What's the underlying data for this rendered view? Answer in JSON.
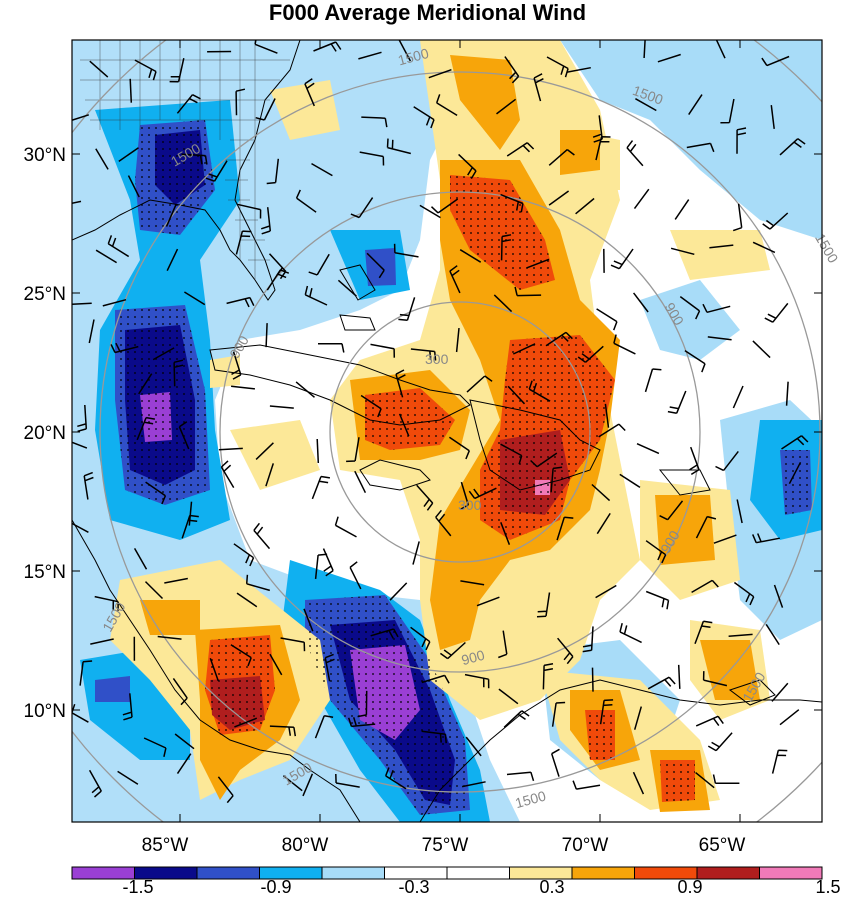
{
  "title": "F000 Average Meridional Wind",
  "y_ticks": [
    "30°N",
    "25°N",
    "20°N",
    "15°N",
    "10°N"
  ],
  "x_ticks": [
    "85°W",
    "80°W",
    "75°W",
    "70°W",
    "65°W"
  ],
  "ring_labels": [
    "300",
    "300",
    "900",
    "900",
    "900",
    "900",
    "1500",
    "1500",
    "1500",
    "1500",
    "1500",
    "1500",
    "1500",
    "1500"
  ],
  "colorbar": {
    "labels": [
      "-1.5",
      "-0.9",
      "-0.3",
      "0.3",
      "0.9",
      "1.5"
    ],
    "colors": [
      "#9a3fd4",
      "#0a0a8a",
      "#3050c8",
      "#10b0f0",
      "#a8dcf8",
      "#ffffff",
      "#ffffff",
      "#fce898",
      "#f7a50a",
      "#f04a0a",
      "#b01e1e",
      "#f07ab8"
    ]
  },
  "chart_data": {
    "type": "heatmap",
    "title": "F000 Average Meridional Wind",
    "x_range": [
      "88°W",
      "61°W"
    ],
    "y_range": [
      "6°N",
      "33°N"
    ],
    "contour_levels": [
      -1.5,
      -1.2,
      -0.9,
      -0.6,
      -0.3,
      0,
      0.3,
      0.6,
      0.9,
      1.2,
      1.5
    ],
    "range_rings": [
      300,
      900,
      1500
    ]
  }
}
